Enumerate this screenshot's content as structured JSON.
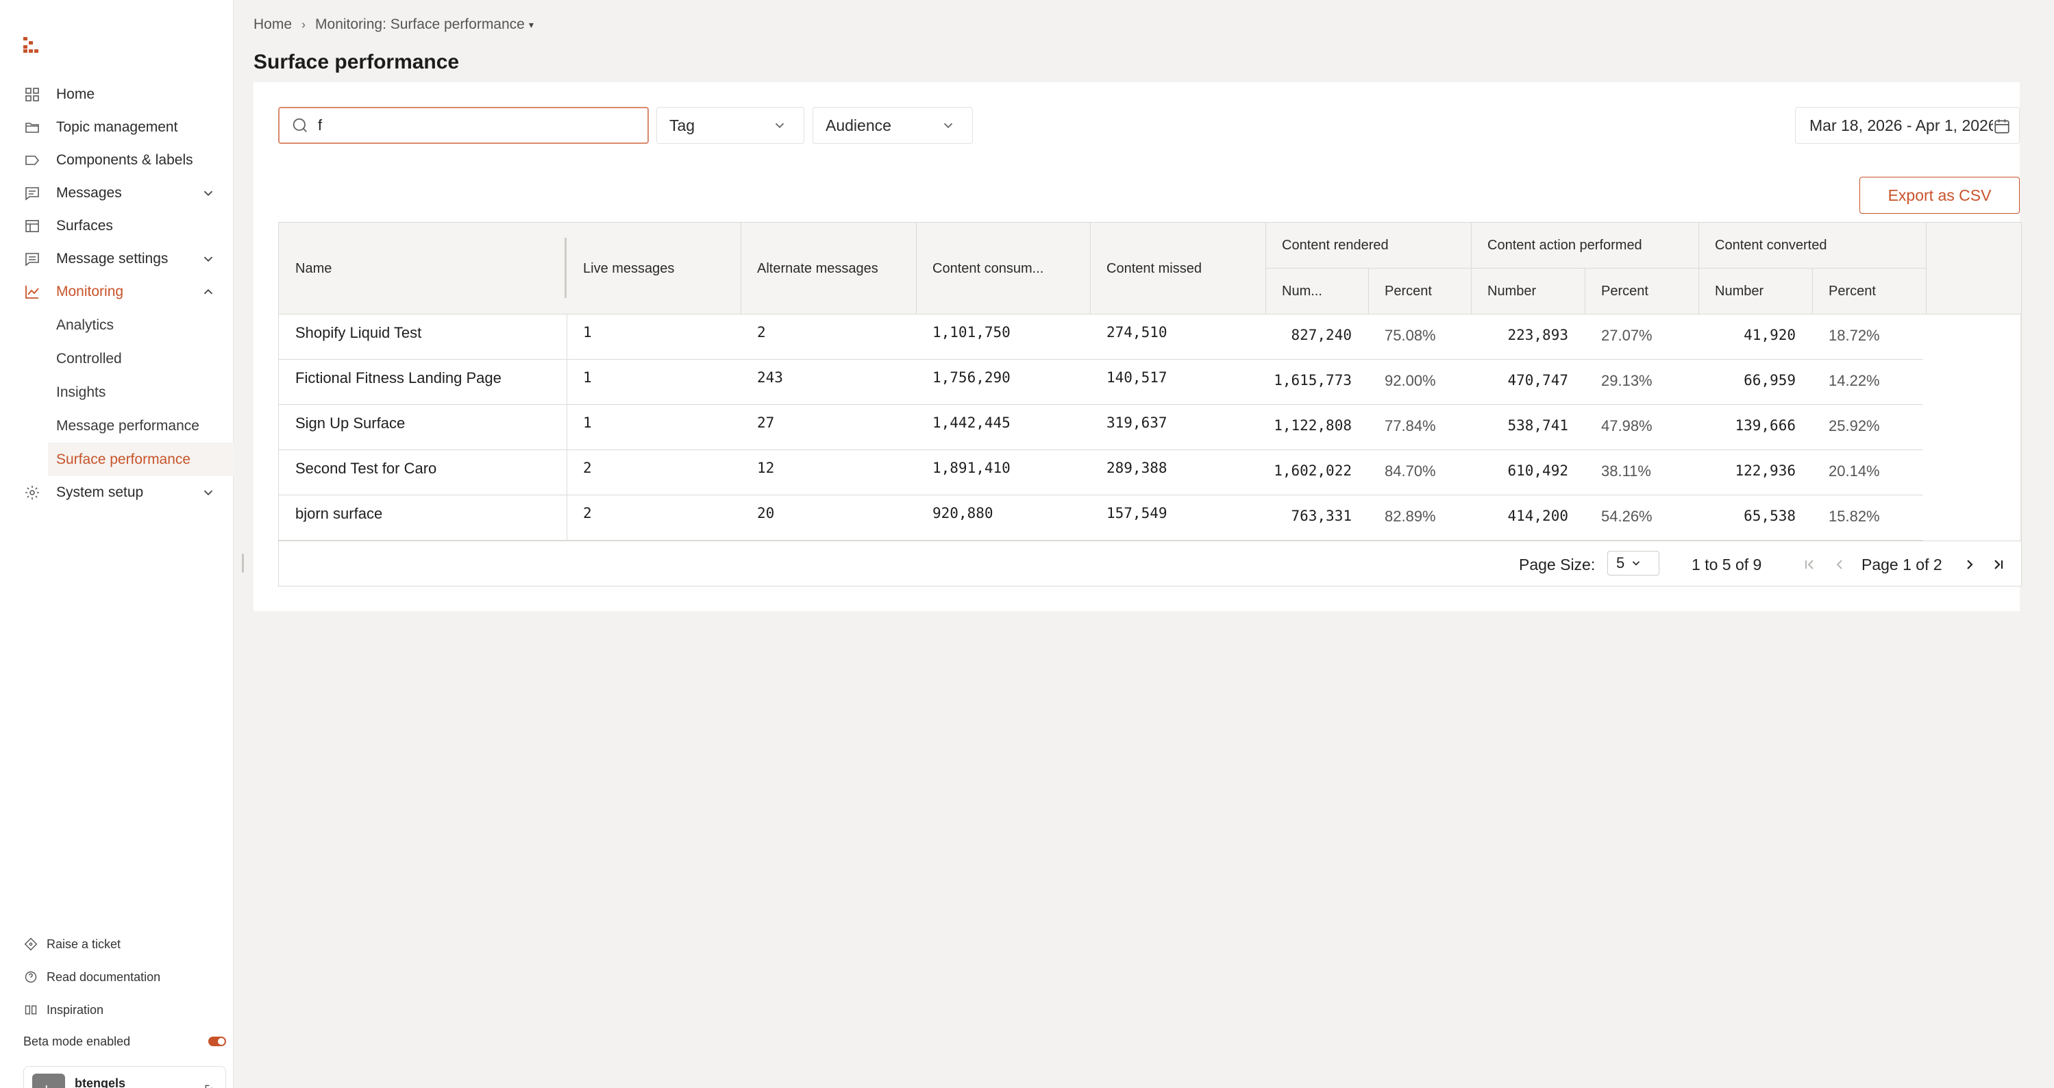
{
  "sidebar": {
    "nav": [
      {
        "label": "Home",
        "icon": "grid-icon"
      },
      {
        "label": "Topic management",
        "icon": "folder-icon"
      },
      {
        "label": "Components & labels",
        "icon": "label-icon"
      },
      {
        "label": "Messages",
        "icon": "message-icon",
        "expandable": true
      },
      {
        "label": "Surfaces",
        "icon": "table-icon"
      },
      {
        "label": "Message settings",
        "icon": "message-settings-icon",
        "expandable": true
      },
      {
        "label": "Monitoring",
        "icon": "chart-line-icon",
        "expanded": true,
        "active": true
      },
      {
        "label": "System setup",
        "icon": "gear-icon",
        "expandable": true
      }
    ],
    "monitoring_children": [
      {
        "label": "Analytics"
      },
      {
        "label": "Controlled"
      },
      {
        "label": "Insights"
      },
      {
        "label": "Message performance"
      },
      {
        "label": "Surface performance",
        "selected": true
      }
    ],
    "footer": {
      "raise_ticket": "Raise a ticket",
      "read_docs": "Read documentation",
      "inspiration": "Inspiration",
      "beta_mode": "Beta mode enabled",
      "user_initial": "b",
      "user_name": "btengels"
    }
  },
  "breadcrumb": {
    "home": "Home",
    "current": "Monitoring: Surface performance"
  },
  "page": {
    "title": "Surface performance"
  },
  "filters": {
    "search_value": "f",
    "tag_label": "Tag",
    "audience_label": "Audience",
    "date_range": "Mar 18, 2026 - Apr 1, 2026"
  },
  "actions": {
    "export_label": "Export as CSV"
  },
  "table": {
    "headers": {
      "name": "Name",
      "live": "Live messages",
      "alternate": "Alternate messages",
      "consumed": "Content consum...",
      "missed": "Content missed",
      "rendered": "Content rendered",
      "action": "Content action performed",
      "converted": "Content converted",
      "rendered_number": "Num...",
      "rendered_percent": "Percent",
      "action_number": "Number",
      "action_percent": "Percent",
      "converted_number": "Number",
      "converted_percent": "Percent"
    },
    "rows": [
      {
        "name": "Shopify Liquid Test",
        "live": "1",
        "alternate": "2",
        "consumed": "1,101,750",
        "missed": "274,510",
        "r_num": "827,240",
        "r_pct": "75.08%",
        "a_num": "223,893",
        "a_pct": "27.07%",
        "c_num": "41,920",
        "c_pct": "18.72%"
      },
      {
        "name": "Fictional Fitness Landing Page",
        "live": "1",
        "alternate": "243",
        "consumed": "1,756,290",
        "missed": "140,517",
        "r_num": "1,615,773",
        "r_pct": "92.00%",
        "a_num": "470,747",
        "a_pct": "29.13%",
        "c_num": "66,959",
        "c_pct": "14.22%"
      },
      {
        "name": "Sign Up Surface",
        "live": "1",
        "alternate": "27",
        "consumed": "1,442,445",
        "missed": "319,637",
        "r_num": "1,122,808",
        "r_pct": "77.84%",
        "a_num": "538,741",
        "a_pct": "47.98%",
        "c_num": "139,666",
        "c_pct": "25.92%"
      },
      {
        "name": "Second Test for Caro",
        "live": "2",
        "alternate": "12",
        "consumed": "1,891,410",
        "missed": "289,388",
        "r_num": "1,602,022",
        "r_pct": "84.70%",
        "a_num": "610,492",
        "a_pct": "38.11%",
        "c_num": "122,936",
        "c_pct": "20.14%"
      },
      {
        "name": "bjorn surface",
        "live": "2",
        "alternate": "20",
        "consumed": "920,880",
        "missed": "157,549",
        "r_num": "763,331",
        "r_pct": "82.89%",
        "a_num": "414,200",
        "a_pct": "54.26%",
        "c_num": "65,538",
        "c_pct": "15.82%"
      }
    ]
  },
  "pagination": {
    "page_size_label": "Page Size:",
    "page_size_value": "5",
    "range_from": "1",
    "range_to_word": "to",
    "range_to": "5",
    "range_of_word": "of",
    "range_total": "9",
    "page_word": "Page",
    "page_current": "1",
    "page_of_word": "of",
    "page_total": "2"
  },
  "colors": {
    "accent": "#c8532a",
    "background": "#f3f2f0",
    "panel": "#ffffff"
  }
}
